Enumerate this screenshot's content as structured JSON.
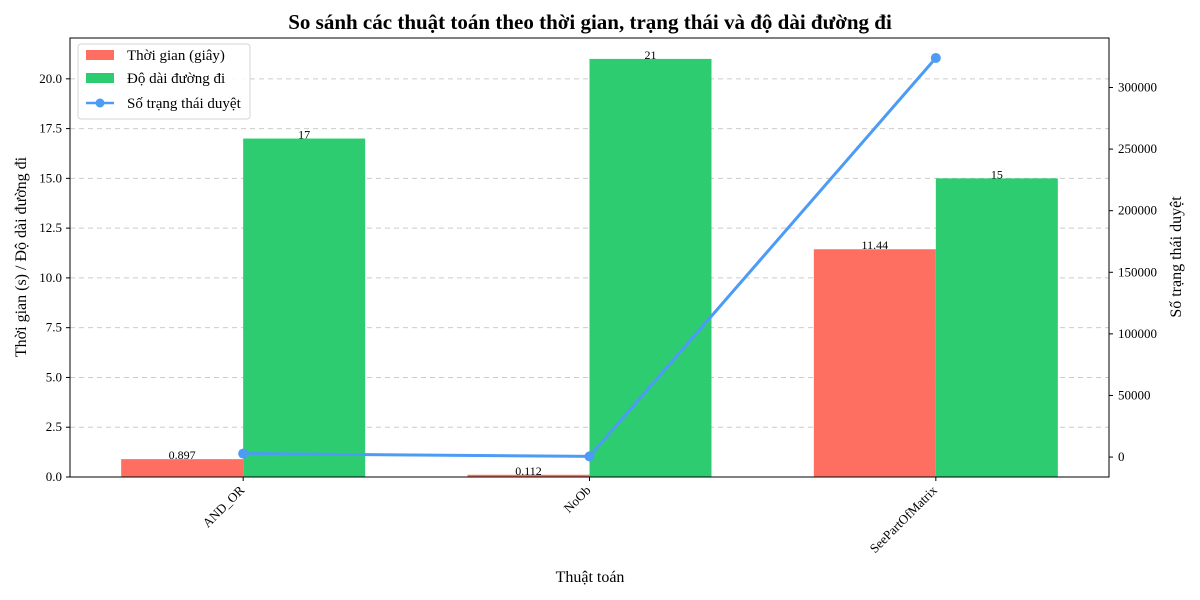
{
  "chart_data": {
    "type": "bar",
    "title": "So sánh các thuật toán theo thời gian, trạng thái và độ dài đường đi",
    "xlabel": "Thuật toán",
    "ylabel": "Thời gian (s) / Độ dài đường đi",
    "y2label": "Số trạng thái duyệt",
    "categories": [
      "AND_OR",
      "NoOb",
      "SeePartOfMatrix"
    ],
    "ylim": [
      0,
      22.05
    ],
    "yticks": [
      0.0,
      2.5,
      5.0,
      7.5,
      10.0,
      12.5,
      15.0,
      17.5,
      20.0
    ],
    "ytick_labels": [
      "0.0",
      "2.5",
      "5.0",
      "7.5",
      "10.0",
      "12.5",
      "15.0",
      "17.5",
      "20.0"
    ],
    "y2lim": [
      -16200,
      340200
    ],
    "y2ticks": [
      0,
      50000,
      100000,
      150000,
      200000,
      250000,
      300000
    ],
    "y2tick_labels": [
      "0",
      "50000",
      "100000",
      "150000",
      "200000",
      "250000",
      "300000"
    ],
    "grid": true,
    "legend_position": "top-left",
    "series": [
      {
        "name": "Thời gian (giây)",
        "kind": "bar",
        "axis": "left",
        "color": "#ff6f61",
        "values": [
          0.897,
          0.112,
          11.44
        ],
        "labels": [
          "0.897",
          "0.112",
          "11.44"
        ]
      },
      {
        "name": "Độ dài đường đi",
        "kind": "bar",
        "axis": "left",
        "color": "#2ecc71",
        "values": [
          17,
          21,
          15
        ],
        "labels": [
          "17",
          "21",
          "15"
        ]
      },
      {
        "name": "Số trạng thái duyệt",
        "kind": "line",
        "axis": "right",
        "color": "#4c9bf5",
        "marker": "circle",
        "values": [
          2800,
          500,
          324000
        ]
      }
    ]
  }
}
